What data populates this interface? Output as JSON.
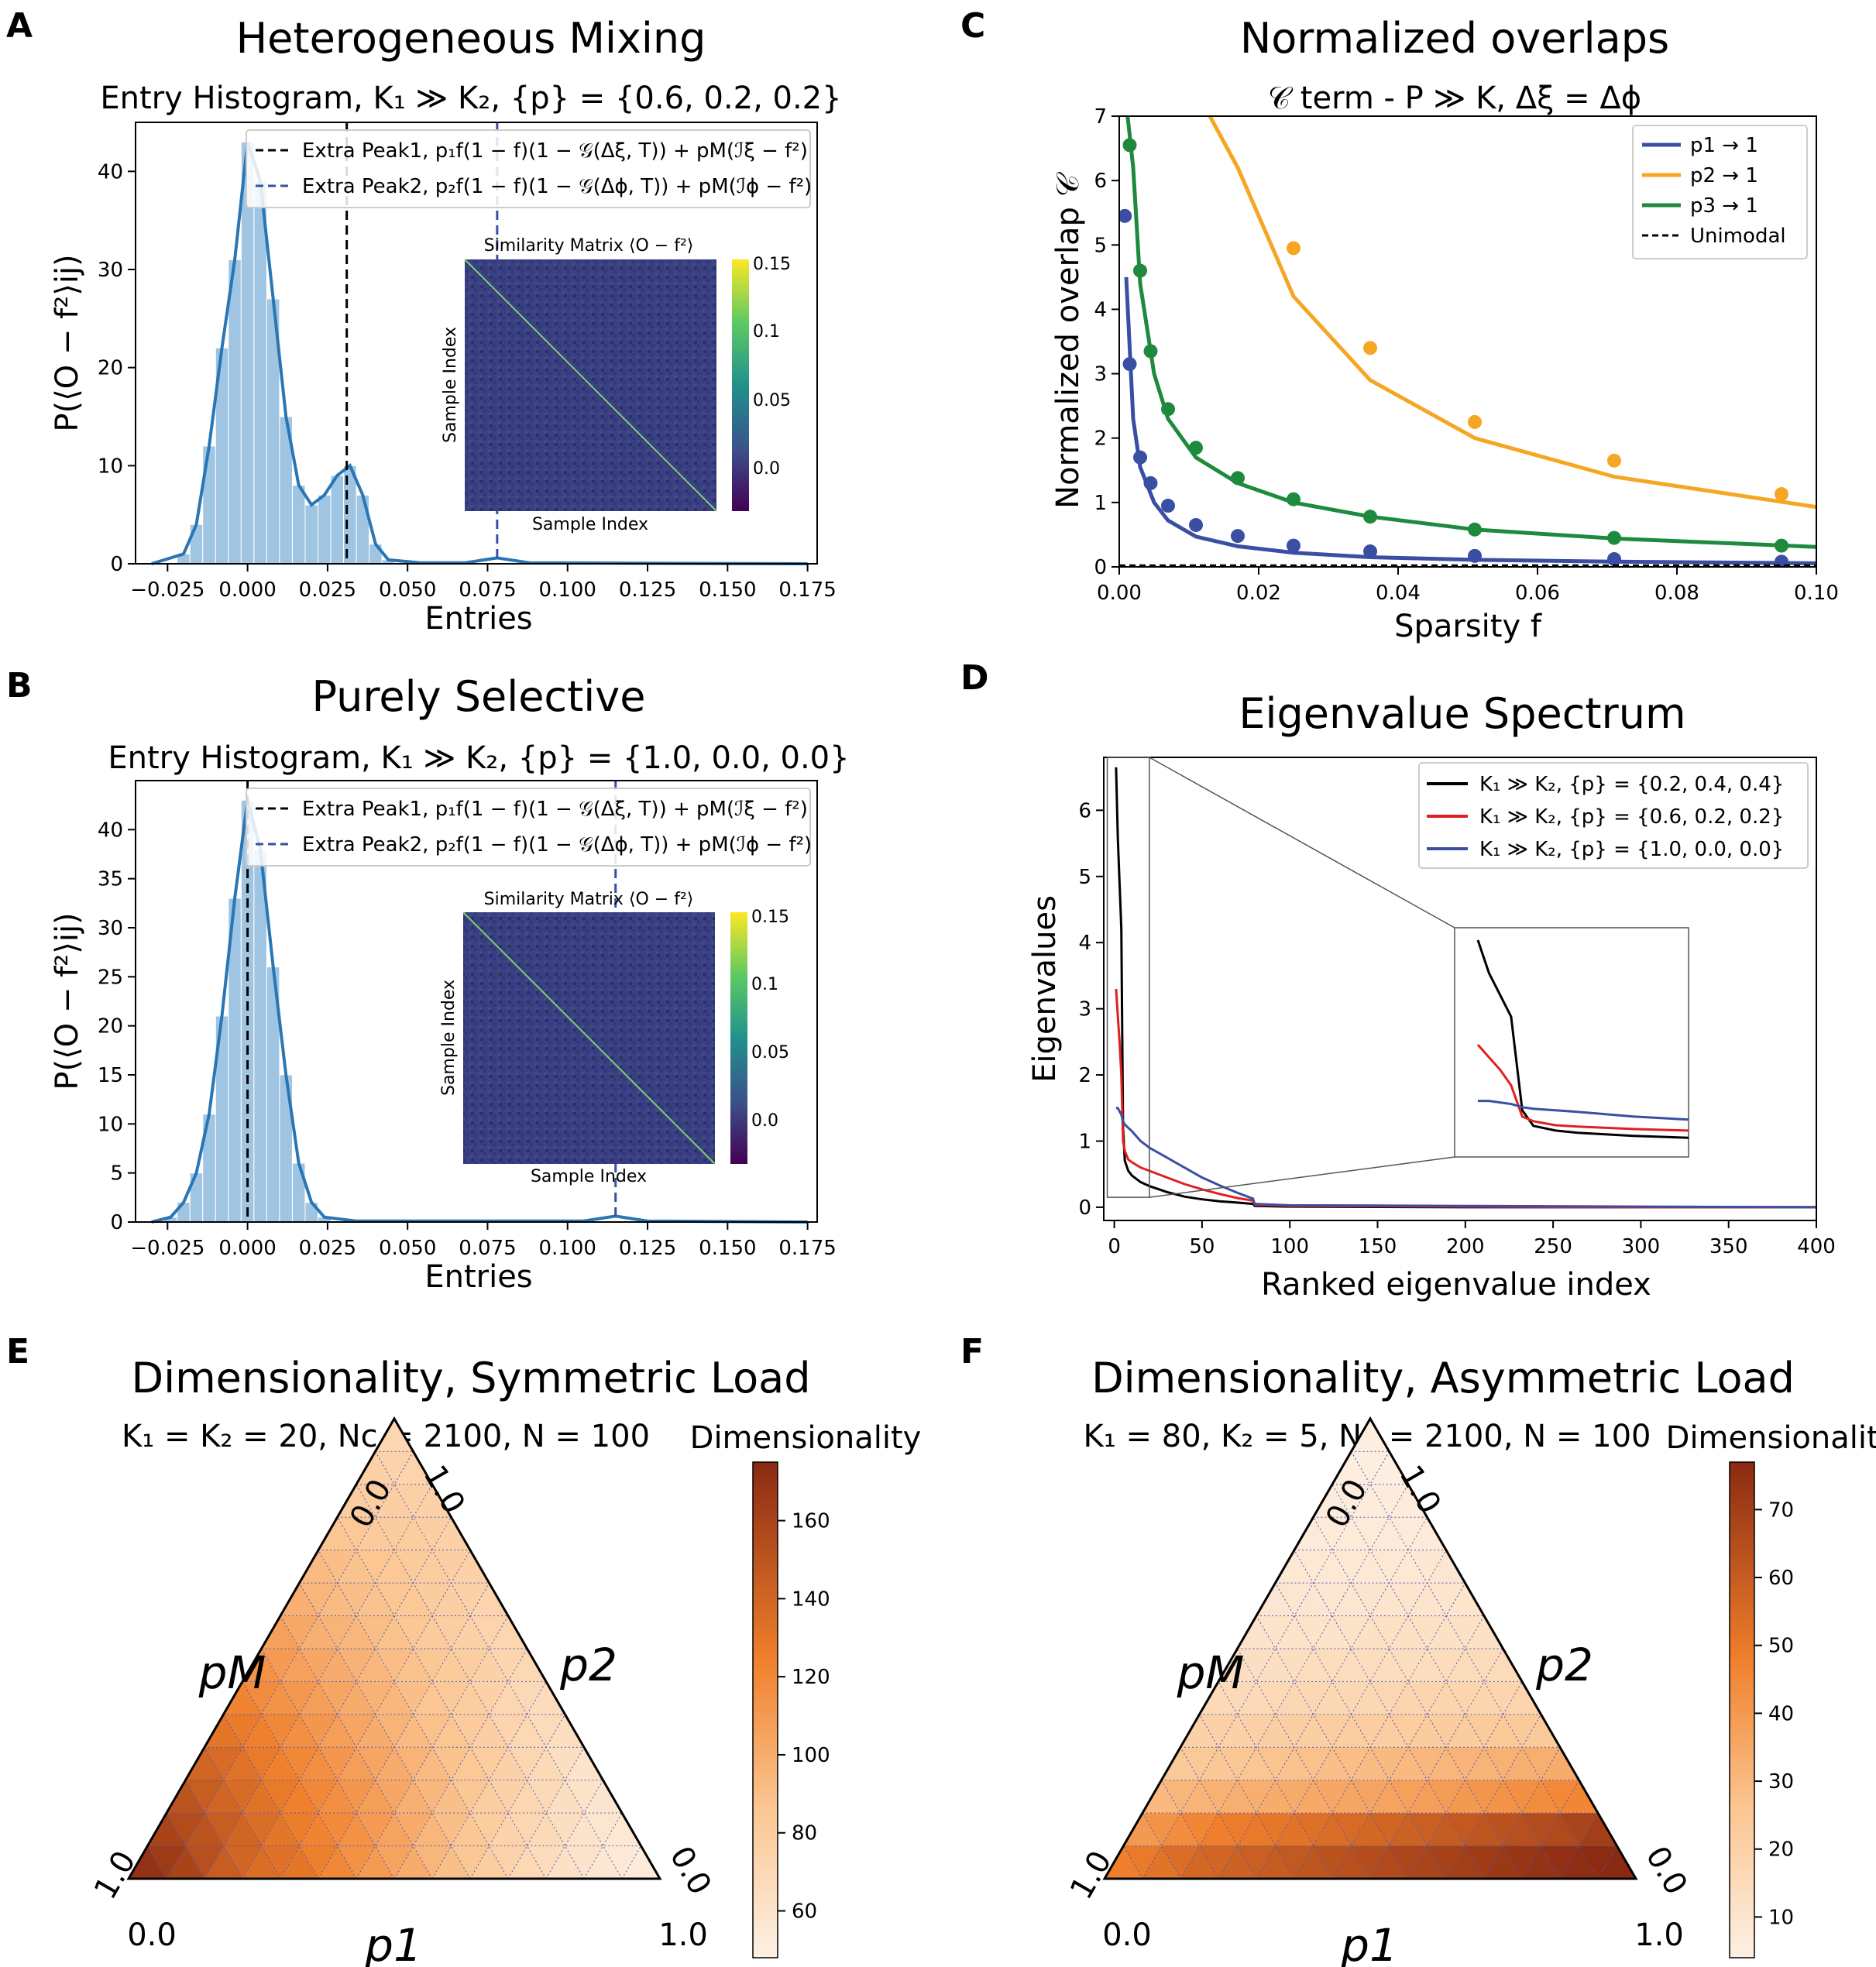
{
  "panels": {
    "A": {
      "letter": "A",
      "title": "Heterogeneous Mixing",
      "subtitle": "Entry Histogram, K₁ ≫ K₂, {p} = {0.6, 0.2, 0.2}",
      "xlabel": "Entries",
      "ylabel": "P(⟨O − f²⟩ij)",
      "legend": [
        "Extra Peak1, p₁f(1 − f)(1 − 𝒢(Δξ, T)) + pM(ℐξ − f²)",
        "Extra Peak2, p₂f(1 − f)(1 − 𝒢(Δϕ, T)) + pM(ℐϕ − f²)"
      ],
      "inset_title": "Similarity Matrix ⟨O − f²⟩",
      "inset_xlabel": "Sample Index",
      "inset_ylabel": "Sample Index"
    },
    "B": {
      "letter": "B",
      "title": "Purely Selective",
      "subtitle": "Entry Histogram, K₁ ≫ K₂, {p} = {1.0, 0.0, 0.0}",
      "xlabel": "Entries",
      "ylabel": "P(⟨O − f²⟩ij)",
      "legend": [
        "Extra Peak1, p₁f(1 − f)(1 − 𝒢(Δξ, T)) + pM(ℐξ − f²)",
        "Extra Peak2, p₂f(1 − f)(1 − 𝒢(Δϕ, T)) + pM(ℐϕ − f²)"
      ],
      "inset_title": "Similarity Matrix ⟨O − f²⟩",
      "inset_xlabel": "Sample Index",
      "inset_ylabel": "Sample Index"
    },
    "C": {
      "letter": "C",
      "title": "Normalized overlaps",
      "subtitle": "𝒞 term - P ≫ K, Δξ = Δϕ",
      "xlabel": "Sparsity f",
      "ylabel": "Normalized overlap 𝒞",
      "legend": [
        "p1 → 1",
        "p2 → 1",
        "p3 → 1",
        "Unimodal"
      ]
    },
    "D": {
      "letter": "D",
      "title": "Eigenvalue Spectrum",
      "xlabel": "Ranked eigenvalue index",
      "ylabel": "Eigenvalues",
      "legend": [
        "K₁ ≫ K₂, {p} = {0.2, 0.4, 0.4}",
        "K₁ ≫ K₂, {p} = {0.6, 0.2, 0.2}",
        "K₁ ≫ K₂, {p} = {1.0, 0.0, 0.0}"
      ]
    },
    "E": {
      "letter": "E",
      "title": "Dimensionality, Symmetric Load",
      "subtitle": "K₁ = K₂ = 20, Nc = 2100, N = 100",
      "cbar_label": "Dimensionality",
      "corner_labels": {
        "bottom_left": "0.0",
        "bottom_right": "1.0",
        "left_top": "0.0",
        "right_top": "1.0",
        "left_bottom": "1.0",
        "right_bottom": "0.0"
      },
      "axis_labels": {
        "left": "pM",
        "right": "p2",
        "bottom": "p1"
      }
    },
    "F": {
      "letter": "F",
      "title": "Dimensionality, Asymmetric Load",
      "subtitle": "K₁ = 80, K₂ = 5, Nc = 2100, N = 100",
      "cbar_label": "Dimensionality",
      "corner_labels": {
        "bottom_left": "0.0",
        "bottom_right": "1.0",
        "left_top": "0.0",
        "right_top": "1.0",
        "left_bottom": "1.0",
        "right_bottom": "0.0"
      },
      "axis_labels": {
        "left": "pM",
        "right": "p2",
        "bottom": "p1"
      }
    }
  },
  "colors": {
    "hist": "#9fc5e3",
    "kde": "#2a76b4",
    "blue": "#3a4fa3",
    "orange": "#f5a623",
    "green": "#1e8a3e",
    "red": "#e02020"
  },
  "chart_data": [
    {
      "id": "A",
      "type": "bar",
      "xlim": [
        -0.035,
        0.178
      ],
      "ylim": [
        0,
        45
      ],
      "xticks": [
        "−0.025",
        "0.000",
        "0.025",
        "0.050",
        "0.075",
        "0.100",
        "0.125",
        "0.150",
        "0.175"
      ],
      "yticks": [
        "0",
        "10",
        "20",
        "30",
        "40"
      ],
      "bins_x": [
        -0.02,
        -0.016,
        -0.012,
        -0.008,
        -0.004,
        0.0,
        0.004,
        0.008,
        0.012,
        0.016,
        0.02,
        0.024,
        0.028,
        0.032,
        0.036,
        0.04,
        0.044
      ],
      "bins_y": [
        1,
        4,
        12,
        22,
        31,
        43,
        39,
        27,
        15,
        8,
        6,
        7,
        9,
        10,
        7,
        2,
        0.4
      ],
      "vlines": [
        0.031,
        0.078
      ],
      "inset_cbar_ticks": [
        "0.15",
        "0.1",
        "0.05",
        "0.0"
      ]
    },
    {
      "id": "B",
      "type": "bar",
      "xlim": [
        -0.035,
        0.178
      ],
      "ylim": [
        0,
        45
      ],
      "xticks": [
        "−0.025",
        "0.000",
        "0.025",
        "0.050",
        "0.075",
        "0.100",
        "0.125",
        "0.150",
        "0.175"
      ],
      "yticks": [
        "0",
        "5",
        "10",
        "15",
        "20",
        "25",
        "30",
        "35",
        "40"
      ],
      "bins_x": [
        -0.024,
        -0.02,
        -0.016,
        -0.012,
        -0.008,
        -0.004,
        0.0,
        0.004,
        0.008,
        0.012,
        0.016,
        0.02,
        0.024
      ],
      "bins_y": [
        0.5,
        2,
        5,
        11,
        21,
        33,
        43,
        38,
        26,
        15,
        6,
        2,
        0.5
      ],
      "vlines": [
        0.0,
        0.115
      ],
      "inset_cbar_ticks": [
        "0.15",
        "0.1",
        "0.05",
        "0.0"
      ]
    },
    {
      "id": "C",
      "type": "line",
      "xlim": [
        0,
        0.1
      ],
      "ylim": [
        0,
        7
      ],
      "xticks": [
        "0.00",
        "0.02",
        "0.04",
        "0.06",
        "0.08",
        "0.10"
      ],
      "yticks": [
        "0",
        "1",
        "2",
        "3",
        "4",
        "5",
        "6",
        "7"
      ],
      "series": [
        {
          "name": "p1 → 1",
          "line_x": [
            0.001,
            0.002,
            0.003,
            0.005,
            0.007,
            0.011,
            0.017,
            0.025,
            0.036,
            0.051,
            0.071,
            0.1
          ],
          "line_y": [
            4.5,
            2.3,
            1.55,
            1.0,
            0.72,
            0.47,
            0.32,
            0.22,
            0.15,
            0.11,
            0.08,
            0.055
          ],
          "points_x": [
            0.0008,
            0.0015,
            0.003,
            0.0045,
            0.007,
            0.011,
            0.017,
            0.025,
            0.036,
            0.051,
            0.071,
            0.095
          ],
          "points_y": [
            5.45,
            3.15,
            1.7,
            1.3,
            0.95,
            0.65,
            0.48,
            0.33,
            0.24,
            0.17,
            0.12,
            0.08
          ]
        },
        {
          "name": "p2 → 1",
          "line_x": [
            0.012,
            0.017,
            0.025,
            0.036,
            0.051,
            0.071,
            0.1
          ],
          "line_y": [
            7.2,
            6.2,
            4.2,
            2.9,
            2.0,
            1.4,
            0.93
          ],
          "points_x": [
            0.025,
            0.036,
            0.051,
            0.071,
            0.095
          ],
          "points_y": [
            4.95,
            3.4,
            2.25,
            1.65,
            1.13
          ]
        },
        {
          "name": "p3 → 1",
          "line_x": [
            0.001,
            0.002,
            0.003,
            0.005,
            0.007,
            0.011,
            0.017,
            0.025,
            0.036,
            0.051,
            0.071,
            0.1
          ],
          "line_y": [
            7.2,
            6.2,
            4.4,
            3.0,
            2.3,
            1.7,
            1.3,
            1.0,
            0.78,
            0.58,
            0.44,
            0.31
          ],
          "points_x": [
            0.0015,
            0.003,
            0.0045,
            0.007,
            0.011,
            0.017,
            0.025,
            0.036,
            0.051,
            0.071,
            0.095
          ],
          "points_y": [
            6.55,
            4.6,
            3.35,
            2.45,
            1.85,
            1.38,
            1.05,
            0.78,
            0.58,
            0.45,
            0.33
          ]
        },
        {
          "name": "Unimodal",
          "line_x": [
            0,
            0.1
          ],
          "line_y": [
            0.02,
            0.02
          ]
        }
      ]
    },
    {
      "id": "D",
      "type": "line",
      "xlim": [
        -6,
        400
      ],
      "ylim": [
        -0.2,
        6.8
      ],
      "xticks": [
        "0",
        "50",
        "100",
        "150",
        "200",
        "250",
        "300",
        "350",
        "400"
      ],
      "yticks": [
        "0",
        "1",
        "2",
        "3",
        "4",
        "5",
        "6"
      ],
      "series": [
        {
          "name": "K₁ ≫ K₂, {p} = {0.2, 0.4, 0.4}",
          "x": [
            1,
            2,
            3,
            4,
            5,
            6,
            8,
            10,
            15,
            20,
            30,
            40,
            50,
            60,
            70,
            79,
            80,
            100,
            200,
            300,
            400
          ],
          "y": [
            6.65,
            5.6,
            4.9,
            4.2,
            1.2,
            0.7,
            0.55,
            0.48,
            0.38,
            0.32,
            0.23,
            0.16,
            0.12,
            0.09,
            0.07,
            0.05,
            0.02,
            0.01,
            0.0,
            0.0,
            0.0
          ]
        },
        {
          "name": "K₁ ≫ K₂, {p} = {0.6, 0.2, 0.2}",
          "x": [
            1,
            2,
            3,
            4,
            5,
            6,
            8,
            10,
            15,
            20,
            30,
            40,
            50,
            60,
            70,
            79,
            80,
            100,
            200,
            300,
            400
          ],
          "y": [
            3.3,
            2.9,
            2.5,
            2.0,
            1.0,
            0.85,
            0.72,
            0.68,
            0.6,
            0.55,
            0.45,
            0.35,
            0.27,
            0.2,
            0.14,
            0.1,
            0.04,
            0.02,
            0.01,
            0.0,
            0.0
          ]
        },
        {
          "name": "K₁ ≫ K₂, {p} = {1.0, 0.0, 0.0}",
          "x": [
            1,
            2,
            3,
            4,
            5,
            6,
            8,
            10,
            15,
            20,
            30,
            40,
            50,
            60,
            70,
            79,
            80,
            100,
            200,
            300,
            400
          ],
          "y": [
            1.5,
            1.5,
            1.45,
            1.4,
            1.3,
            1.25,
            1.2,
            1.15,
            1.0,
            0.9,
            0.75,
            0.6,
            0.45,
            0.33,
            0.22,
            0.13,
            0.05,
            0.03,
            0.02,
            0.01,
            0.0
          ]
        }
      ],
      "zoom": {
        "xlim": [
          0,
          20
        ],
        "ylim": [
          0.2,
          6.8
        ]
      }
    },
    {
      "id": "E",
      "type": "heatmap",
      "colorbar_range": [
        48,
        175
      ],
      "colorbar_ticks": [
        60,
        80,
        100,
        120,
        140,
        160
      ],
      "rows_bottom_to_top": [
        [
          170,
          160,
          145,
          135,
          130,
          120,
          110,
          100,
          90,
          80,
          70,
          62,
          56,
          52
        ],
        [
          160,
          150,
          140,
          130,
          122,
          115,
          105,
          95,
          85,
          75,
          68,
          60,
          55
        ],
        [
          150,
          140,
          132,
          124,
          116,
          108,
          98,
          90,
          80,
          72,
          64,
          58
        ],
        [
          140,
          132,
          124,
          116,
          108,
          100,
          92,
          84,
          76,
          68,
          60
        ],
        [
          130,
          124,
          116,
          108,
          100,
          92,
          86,
          78,
          70,
          64
        ],
        [
          122,
          114,
          108,
          100,
          94,
          86,
          80,
          72,
          66
        ],
        [
          114,
          106,
          100,
          94,
          88,
          82,
          76,
          70
        ],
        [
          106,
          98,
          94,
          88,
          82,
          76,
          72
        ],
        [
          98,
          92,
          88,
          84,
          78,
          74
        ],
        [
          92,
          88,
          84,
          80,
          76
        ],
        [
          86,
          82,
          80,
          76
        ],
        [
          80,
          78,
          76
        ],
        [
          76,
          74
        ],
        [
          72
        ]
      ]
    },
    {
      "id": "F",
      "type": "heatmap",
      "colorbar_range": [
        4,
        77
      ],
      "colorbar_ticks": [
        10,
        20,
        30,
        40,
        50,
        60,
        70
      ],
      "rows_bottom_to_top": [
        [
          48,
          52,
          56,
          58,
          60,
          62,
          64,
          66,
          68,
          70,
          72,
          74,
          76,
          77
        ],
        [
          40,
          44,
          48,
          50,
          52,
          54,
          56,
          58,
          60,
          62,
          64,
          66,
          70
        ],
        [
          30,
          32,
          33,
          34,
          35,
          36,
          37,
          38,
          40,
          42,
          44,
          46
        ],
        [
          24,
          25,
          26,
          27,
          28,
          29,
          30,
          31,
          32,
          33,
          34
        ],
        [
          20,
          20,
          21,
          21,
          22,
          22,
          23,
          23,
          24,
          24
        ],
        [
          16,
          16,
          17,
          17,
          17,
          18,
          18,
          18,
          19
        ],
        [
          13,
          13,
          14,
          14,
          14,
          14,
          15,
          15
        ],
        [
          11,
          11,
          11,
          12,
          12,
          12,
          12
        ],
        [
          9,
          9,
          9,
          10,
          10,
          10
        ],
        [
          8,
          8,
          8,
          8,
          9
        ],
        [
          7,
          7,
          7,
          7
        ],
        [
          6,
          6,
          6
        ],
        [
          5,
          5
        ],
        [
          5
        ]
      ]
    }
  ]
}
